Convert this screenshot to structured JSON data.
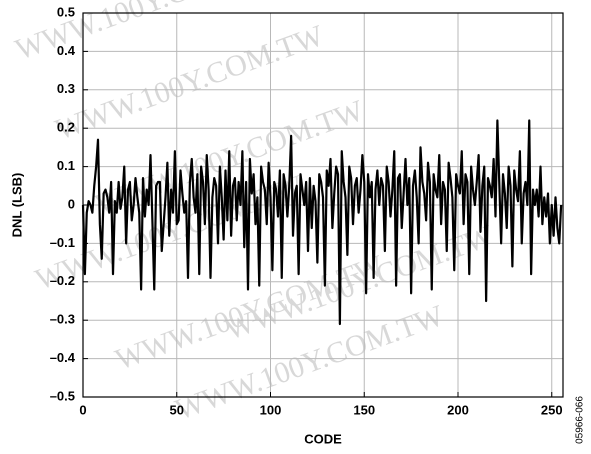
{
  "chart_data": {
    "type": "line",
    "xlabel": "CODE",
    "ylabel": "DNL (LSB)",
    "watermark": "WWW.100Y.COM.TW",
    "figure_id": "05966-066",
    "color": "#000000",
    "grid": true,
    "xlim": [
      0,
      256
    ],
    "xticks": [
      0,
      50,
      100,
      150,
      200,
      250
    ],
    "ylim": [
      -0.5,
      0.5
    ],
    "yticks": [
      {
        "value": -0.5,
        "label": "–0.5"
      },
      {
        "value": -0.4,
        "label": "–0.4"
      },
      {
        "value": -0.3,
        "label": "–0.3"
      },
      {
        "value": -0.2,
        "label": "–0.2"
      },
      {
        "value": -0.1,
        "label": "–0.1"
      },
      0,
      0.1,
      0.2,
      0.3,
      0.4,
      0.5
    ],
    "x": [
      0,
      1,
      2,
      3,
      4,
      5,
      6,
      7,
      8,
      9,
      10,
      11,
      12,
      13,
      14,
      15,
      16,
      17,
      18,
      19,
      20,
      21,
      22,
      23,
      24,
      25,
      26,
      27,
      28,
      29,
      30,
      31,
      32,
      33,
      34,
      35,
      36,
      37,
      38,
      39,
      40,
      41,
      42,
      43,
      44,
      45,
      46,
      47,
      48,
      49,
      50,
      51,
      52,
      53,
      54,
      55,
      56,
      57,
      58,
      59,
      60,
      61,
      62,
      63,
      64,
      65,
      66,
      67,
      68,
      69,
      70,
      71,
      72,
      73,
      74,
      75,
      76,
      77,
      78,
      79,
      80,
      81,
      82,
      83,
      84,
      85,
      86,
      87,
      88,
      89,
      90,
      91,
      92,
      93,
      94,
      95,
      96,
      97,
      98,
      99,
      100,
      101,
      102,
      103,
      104,
      105,
      106,
      107,
      108,
      109,
      110,
      111,
      112,
      113,
      114,
      115,
      116,
      117,
      118,
      119,
      120,
      121,
      122,
      123,
      124,
      125,
      126,
      127,
      128,
      129,
      130,
      131,
      132,
      133,
      134,
      135,
      136,
      137,
      138,
      139,
      140,
      141,
      142,
      143,
      144,
      145,
      146,
      147,
      148,
      149,
      150,
      151,
      152,
      153,
      154,
      155,
      156,
      157,
      158,
      159,
      160,
      161,
      162,
      163,
      164,
      165,
      166,
      167,
      168,
      169,
      170,
      171,
      172,
      173,
      174,
      175,
      176,
      177,
      178,
      179,
      180,
      181,
      182,
      183,
      184,
      185,
      186,
      187,
      188,
      189,
      190,
      191,
      192,
      193,
      194,
      195,
      196,
      197,
      198,
      199,
      200,
      201,
      202,
      203,
      204,
      205,
      206,
      207,
      208,
      209,
      210,
      211,
      212,
      213,
      214,
      215,
      216,
      217,
      218,
      219,
      220,
      221,
      222,
      223,
      224,
      225,
      226,
      227,
      228,
      229,
      230,
      231,
      232,
      233,
      234,
      235,
      236,
      237,
      238,
      239,
      240,
      241,
      242,
      243,
      244,
      245,
      246,
      247,
      248,
      249,
      250,
      251,
      252,
      253,
      254,
      255
    ],
    "values": [
      0,
      -0.18,
      -0.02,
      0.01,
      0,
      -0.02,
      0.05,
      0.1,
      0.17,
      -0.05,
      -0.14,
      0.03,
      0.04,
      0.02,
      -0.02,
      0.06,
      -0.18,
      0.01,
      -0.02,
      0.06,
      -0.01,
      0.02,
      0.1,
      -0.1,
      0.04,
      0.06,
      -0.04,
      0,
      0.07,
      0.02,
      -0.02,
      -0.22,
      0.07,
      -0.03,
      0.04,
      0,
      0.13,
      -0.04,
      -0.22,
      0.05,
      0.06,
      0.06,
      -0.12,
      -0.05,
      0.02,
      0.11,
      -0.08,
      0.04,
      -0.02,
      0.14,
      -0.05,
      -0.04,
      0.09,
      0.03,
      -0.02,
      0.01,
      -0.19,
      0.06,
      0.12,
      0.02,
      -0.02,
      0.08,
      -0.18,
      0.1,
      0.06,
      -0.05,
      0.13,
      0.04,
      -0.19,
      0.02,
      0.07,
      0.05,
      -0.1,
      0.1,
      0.02,
      -0.09,
      0.09,
      -0.04,
      0.14,
      -0.08,
      0.05,
      0.07,
      -0.04,
      0.06,
      0,
      0.14,
      -0.11,
      0.06,
      -0.22,
      0.12,
      0.03,
      0.08,
      -0.05,
      0.02,
      -0.21,
      0.1,
      0.06,
      0.04,
      -0.05,
      0.11,
      0.02,
      -0.17,
      0.06,
      0.04,
      -0.03,
      0.09,
      -0.19,
      0.08,
      0.05,
      -0.03,
      0.05,
      0.18,
      -0.08,
      0.03,
      0.05,
      -0.18,
      0.08,
      0.04,
      0,
      0.06,
      -0.12,
      0.07,
      -0.06,
      0.05,
      0.01,
      -0.15,
      0.08,
      0.06,
      0.02,
      -0.21,
      0.09,
      0.05,
      0.12,
      -0.06,
      0.03,
      0.1,
      0.08,
      -0.31,
      0.14,
      0.06,
      0.02,
      -0.13,
      0.1,
      0.07,
      -0.05,
      0.05,
      0.07,
      -0.02,
      0.04,
      0.13,
      0.06,
      -0.23,
      0.08,
      0.02,
      0.06,
      -0.19,
      0.04,
      0.09,
      0,
      0.07,
      0.05,
      -0.12,
      0.1,
      0.06,
      -0.03,
      0.04,
      0.14,
      -0.21,
      0.07,
      0.08,
      -0.06,
      0.03,
      0.12,
      0,
      0.07,
      -0.23,
      0.05,
      0.09,
      0.02,
      -0.1,
      0.15,
      0.06,
      0.03,
      -0.04,
      0.11,
      0.06,
      -0.22,
      0.08,
      0.04,
      0.02,
      0.13,
      -0.05,
      0.06,
      0.04,
      -0.12,
      0.11,
      0.07,
      0.02,
      -0.17,
      0.08,
      0.05,
      0.03,
      0.14,
      -0.05,
      0.08,
      0.06,
      -0.18,
      0.1,
      0.04,
      0,
      0.06,
      0.13,
      -0.07,
      0.05,
      0.1,
      -0.25,
      0.07,
      0.05,
      0.02,
      0.12,
      -0.03,
      0.22,
      0.06,
      -0.1,
      0.08,
      0.03,
      -0.06,
      0.1,
      0.05,
      -0.16,
      0.09,
      0.04,
      0.01,
      0.14,
      -0.1,
      0.03,
      0.06,
      0,
      0.22,
      -0.18,
      0.04,
      0,
      0.04,
      -0.03,
      0.1,
      -0.05,
      0.02,
      -0.03,
      0.03,
      -0.1,
      0,
      -0.08,
      0.02,
      -0.06,
      -0.1,
      0
    ]
  }
}
